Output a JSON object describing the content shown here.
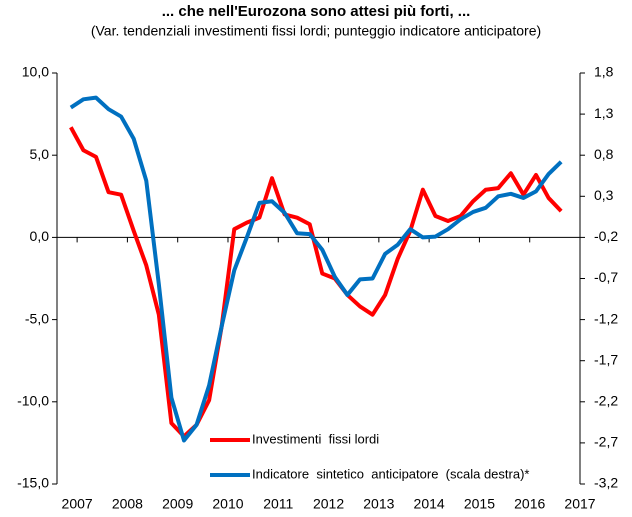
{
  "chart_data": {
    "type": "line",
    "title": "... che nell'Eurozona sono attesi più forti, ...",
    "subtitle": "(Var. tendenziali investimenti fissi lordi; punteggio indicatore anticipatore)",
    "x": [
      2006.875,
      2007.125,
      2007.375,
      2007.625,
      2007.875,
      2008.125,
      2008.375,
      2008.625,
      2008.875,
      2009.125,
      2009.375,
      2009.625,
      2009.875,
      2010.125,
      2010.375,
      2010.625,
      2010.875,
      2011.125,
      2011.375,
      2011.625,
      2011.875,
      2012.125,
      2012.375,
      2012.625,
      2012.875,
      2013.125,
      2013.375,
      2013.625,
      2013.875,
      2014.125,
      2014.375,
      2014.625,
      2014.875,
      2015.125,
      2015.375,
      2015.625,
      2015.875,
      2016.125,
      2016.375,
      2016.625
    ],
    "series": [
      {
        "name": "Investimenti  fissi lordi",
        "color": "#ff0000",
        "values": [
          6.7,
          5.3,
          4.9,
          2.75,
          2.6,
          0.4,
          -1.7,
          -4.7,
          -11.3,
          -12.1,
          -11.4,
          -9.9,
          -5.4,
          0.5,
          0.9,
          1.2,
          3.6,
          1.4,
          1.2,
          0.8,
          -2.2,
          -2.5,
          -3.5,
          -4.2,
          -4.7,
          -3.5,
          -1.3,
          0.4,
          2.9,
          1.3,
          1.0,
          1.3,
          2.2,
          2.9,
          3.0,
          3.9,
          2.6,
          3.8,
          2.4,
          1.6
        ]
      },
      {
        "name": "Indicatore  sintetico  anticipatore  (scala destra)*",
        "color": "#0070c0",
        "axis": "y2",
        "values": [
          1.38,
          1.48,
          1.5,
          1.36,
          1.27,
          1.0,
          0.49,
          -0.77,
          -2.15,
          -2.67,
          -2.48,
          -2.0,
          -1.28,
          -0.6,
          -0.2,
          0.22,
          0.24,
          0.1,
          -0.15,
          -0.16,
          -0.35,
          -0.68,
          -0.9,
          -0.71,
          -0.7,
          -0.4,
          -0.29,
          -0.1,
          -0.2,
          -0.19,
          -0.1,
          0.02,
          0.11,
          0.16,
          0.3,
          0.33,
          0.28,
          0.36,
          0.57,
          0.72
        ]
      }
    ],
    "xlim": [
      2006.6,
      2017.0
    ],
    "xticks": [
      2007,
      2008,
      2009,
      2010,
      2011,
      2012,
      2013,
      2014,
      2015,
      2016,
      2017
    ],
    "ylim": [
      -15,
      10
    ],
    "yticks": [
      {
        "value": -15,
        "label": "-15,0"
      },
      {
        "value": -10,
        "label": "-10,0"
      },
      {
        "value": -5,
        "label": "-5,0"
      },
      {
        "value": 0,
        "label": "0,0"
      },
      {
        "value": 5,
        "label": "5,0"
      },
      {
        "value": 10,
        "label": "10,0"
      }
    ],
    "y2lim": [
      -3.2,
      1.8
    ],
    "y2ticks": [
      {
        "value": -3.2,
        "label": "-3,2"
      },
      {
        "value": -2.7,
        "label": "-2,7"
      },
      {
        "value": -2.2,
        "label": "-2,2"
      },
      {
        "value": -1.7,
        "label": "-1,7"
      },
      {
        "value": -1.2,
        "label": "-1,2"
      },
      {
        "value": -0.7,
        "label": "-0,7"
      },
      {
        "value": -0.2,
        "label": "-0,2"
      },
      {
        "value": 0.3,
        "label": "0,3"
      },
      {
        "value": 0.8,
        "label": "0,8"
      },
      {
        "value": 1.3,
        "label": "1,3"
      },
      {
        "value": 1.8,
        "label": "1,8"
      }
    ],
    "legend": "lower left"
  }
}
